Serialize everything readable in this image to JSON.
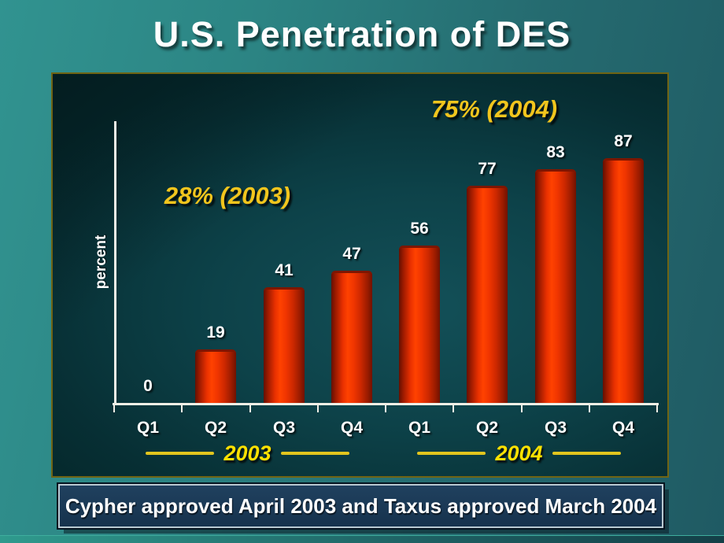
{
  "slide": {
    "title": "U.S. Penetration of DES",
    "caption": "Cypher approved April 2003 and Taxus approved March 2004"
  },
  "chart_data": {
    "type": "bar",
    "title": "U.S. Penetration of DES",
    "xlabel": "",
    "ylabel": "percent",
    "ylim": [
      0,
      100
    ],
    "grid": false,
    "legend": "none",
    "categories": [
      "Q1",
      "Q2",
      "Q3",
      "Q4",
      "Q1",
      "Q2",
      "Q3",
      "Q4"
    ],
    "values": [
      0,
      19,
      41,
      47,
      56,
      77,
      83,
      87
    ],
    "value_labels": [
      "0",
      "19",
      "41",
      "47",
      "56",
      "77",
      "83",
      "87"
    ],
    "year_groups": [
      {
        "label": "2003",
        "start": 0,
        "end": 3
      },
      {
        "label": "2004",
        "start": 4,
        "end": 7
      }
    ],
    "annotations": [
      {
        "text": "28% (2003)"
      },
      {
        "text": "75% (2004)"
      }
    ],
    "colors": {
      "bar_main": "#ff4200",
      "bar_edge": "#701200",
      "axis": "#f2efe6",
      "value_text": "#ffffff",
      "annotation_text": "#f2c51d",
      "year_text": "#ffe100",
      "panel_border": "#6f6414",
      "caption_bg": "#16324d",
      "background_teal": "#2c8584"
    }
  }
}
